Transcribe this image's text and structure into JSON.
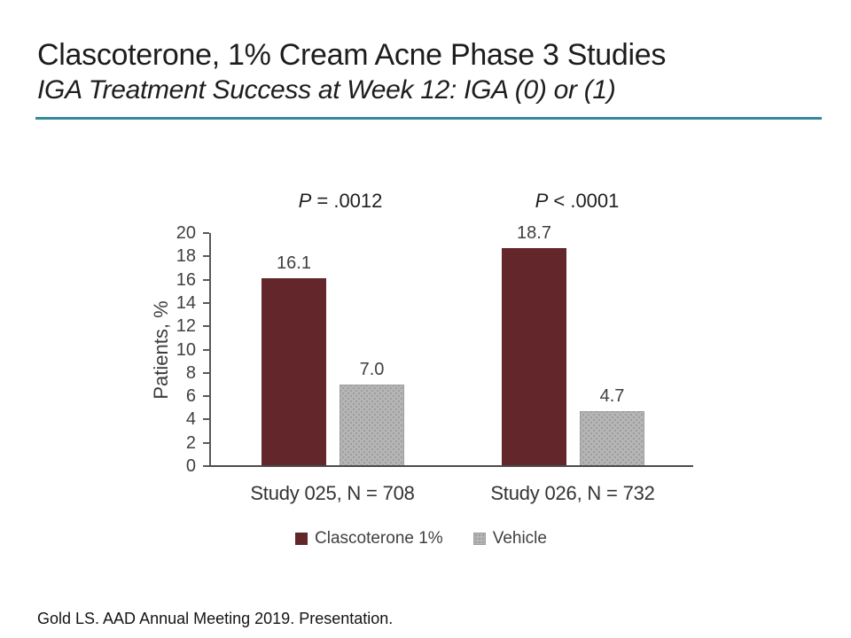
{
  "header": {
    "title": "Clascoterone, 1% Cream Acne Phase 3 Studies",
    "subtitle": "IGA Treatment Success at Week 12: IGA (0) or (1)",
    "divider_color": "#35899C"
  },
  "chart_data": {
    "type": "bar",
    "title": "",
    "xlabel": "",
    "ylabel": "Patients, %",
    "ylim": [
      0,
      20
    ],
    "yticks": [
      0,
      2,
      4,
      6,
      8,
      10,
      12,
      14,
      16,
      18,
      20
    ],
    "grid": false,
    "legend_position": "bottom",
    "categories": [
      "Study 025, N = 708",
      "Study 026, N = 732"
    ],
    "series": [
      {
        "name": "Clascoterone 1%",
        "color": "#63262A",
        "pattern": "solid",
        "values": [
          16.1,
          18.7
        ]
      },
      {
        "name": "Vehicle",
        "color": "#B5B5B5",
        "pattern": "dotted",
        "values": [
          7.0,
          4.7
        ]
      }
    ],
    "value_label_decimals": 1,
    "annotations": [
      "P = .0012",
      "P < .0001"
    ]
  },
  "footer": {
    "citation": "Gold LS. AAD Annual Meeting 2019. Presentation."
  }
}
